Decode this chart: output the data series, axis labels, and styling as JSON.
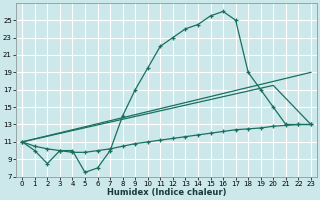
{
  "title": "",
  "xlabel": "Humidex (Indice chaleur)",
  "bg_color": "#cce8ea",
  "grid_color": "#ffffff",
  "line_color": "#1a7060",
  "xlim": [
    -0.5,
    23.5
  ],
  "ylim": [
    7,
    27
  ],
  "xticks": [
    0,
    1,
    2,
    3,
    4,
    5,
    6,
    7,
    8,
    9,
    10,
    11,
    12,
    13,
    14,
    15,
    16,
    17,
    18,
    19,
    20,
    21,
    22,
    23
  ],
  "yticks": [
    7,
    9,
    11,
    13,
    15,
    17,
    19,
    21,
    23,
    25
  ],
  "line1_x": [
    0,
    1,
    2,
    3,
    4,
    5,
    6,
    7,
    8,
    9,
    10,
    11,
    12,
    13,
    14,
    15,
    16,
    17,
    18,
    19,
    20,
    21,
    22,
    23
  ],
  "line1_y": [
    11,
    10,
    8.5,
    10,
    10,
    7.5,
    8,
    10,
    14,
    17,
    19.5,
    22,
    23,
    24,
    24.5,
    25.5,
    26,
    25,
    19,
    17,
    15,
    13,
    13,
    13
  ],
  "line2_x": [
    0,
    1,
    2,
    3,
    4,
    5,
    6,
    7,
    8,
    9,
    10,
    11,
    12,
    13,
    14,
    15,
    16,
    17,
    18,
    19,
    20,
    21,
    22,
    23
  ],
  "line2_y": [
    11,
    10.5,
    10.2,
    10.0,
    9.8,
    9.8,
    10.0,
    10.2,
    10.5,
    10.8,
    11.0,
    11.2,
    11.4,
    11.6,
    11.8,
    12.0,
    12.2,
    12.4,
    12.5,
    12.6,
    12.8,
    12.9,
    13.0,
    13.0
  ],
  "line3_x": [
    0,
    23
  ],
  "line3_y": [
    11,
    19
  ],
  "line4_x": [
    0,
    20,
    23
  ],
  "line4_y": [
    11,
    17.5,
    13
  ]
}
